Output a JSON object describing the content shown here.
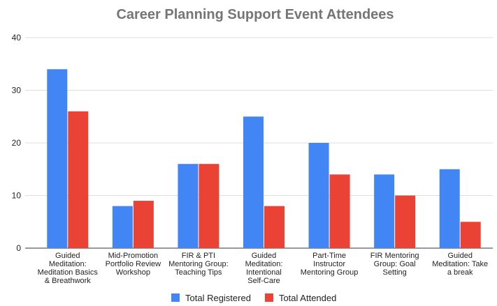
{
  "chart_data": {
    "type": "bar",
    "title": "Career Planning Support Event Attendees",
    "categories": [
      [
        "Guided",
        "Meditation:",
        "Meditation Basics",
        "& Breathwork"
      ],
      [
        "Mid-Promotion",
        "Portfolio Review",
        "Workshop"
      ],
      [
        "FIR & PTI",
        "Mentoring Group:",
        "Teaching Tips"
      ],
      [
        "Guided",
        "Meditation:",
        "Intentional",
        "Self-Care"
      ],
      [
        "Part-Time",
        "Instructor",
        "Mentoring Group"
      ],
      [
        "FIR Mentoring",
        "Group: Goal",
        "Setting"
      ],
      [
        "Guided",
        "Meditation: Take",
        "a break"
      ]
    ],
    "series": [
      {
        "name": "Total Registered",
        "color": "#4285f4",
        "values": [
          34,
          8,
          16,
          25,
          20,
          14,
          15
        ]
      },
      {
        "name": "Total Attended",
        "color": "#ea4335",
        "values": [
          26,
          9,
          16,
          8,
          14,
          10,
          5
        ]
      }
    ],
    "ylim": [
      0,
      40
    ],
    "yticks": [
      0,
      10,
      20,
      30,
      40
    ],
    "grid": true,
    "legend": "bottom"
  }
}
